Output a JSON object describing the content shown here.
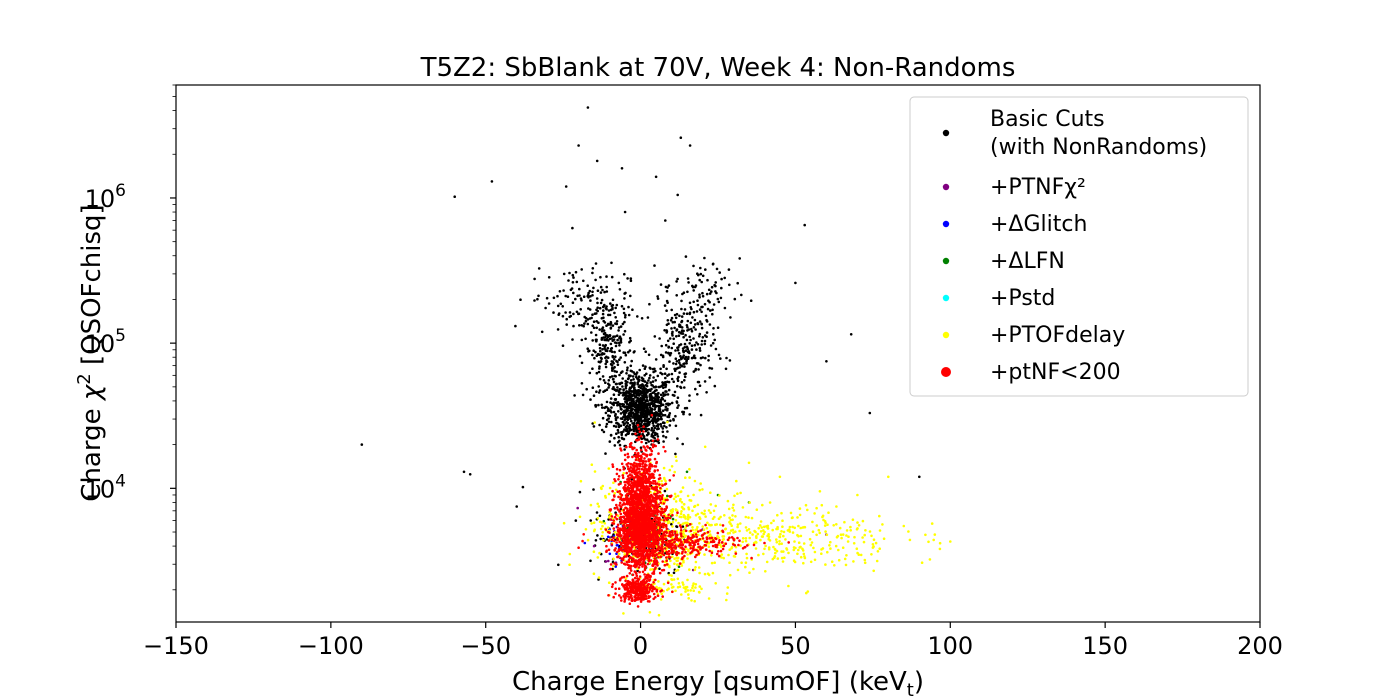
{
  "chart_data": {
    "type": "scatter",
    "title": "T5Z2: SbBlank at 70V, Week 4: Non-Randoms",
    "xlabel": {
      "main": "Charge Energy [qsumOF] (keV",
      "sub": "t",
      "tail": ")"
    },
    "ylabel": {
      "main": "Charge ",
      "greek": "χ",
      "sup": "2",
      "tail": " [QSOFchisq]"
    },
    "xlim": [
      -150,
      200
    ],
    "ylim": [
      1200,
      6000000
    ],
    "yscale": "log",
    "grid": false,
    "legend_position": "top-right",
    "xticks": [
      {
        "value": -150,
        "label": "−150"
      },
      {
        "value": -100,
        "label": "−100"
      },
      {
        "value": -50,
        "label": "−50"
      },
      {
        "value": 0,
        "label": "0"
      },
      {
        "value": 50,
        "label": "50"
      },
      {
        "value": 100,
        "label": "100"
      },
      {
        "value": 150,
        "label": "150"
      },
      {
        "value": 200,
        "label": "200"
      }
    ],
    "yticks": [
      {
        "value": 10000,
        "base": "10",
        "exp": "4"
      },
      {
        "value": 100000,
        "base": "10",
        "exp": "5"
      },
      {
        "value": 1000000,
        "base": "10",
        "exp": "6"
      }
    ],
    "series": [
      {
        "name": "Basic Cuts\n(with NonRandoms)",
        "color": "#000000",
        "clusters": [
          {
            "x": 0,
            "sx": 5,
            "y": 35000,
            "sy": 0.12,
            "n": 900
          },
          {
            "x": -10,
            "sx": 4,
            "y": 90000,
            "sy": 0.18,
            "n": 260
          },
          {
            "x": 14,
            "sx": 5,
            "y": 90000,
            "sy": 0.18,
            "n": 260
          },
          {
            "x": -20,
            "sx": 8,
            "y": 200000,
            "sy": 0.12,
            "n": 120
          },
          {
            "x": 20,
            "sx": 6,
            "y": 220000,
            "sy": 0.12,
            "n": 80
          },
          {
            "x": 0,
            "sx": 8,
            "y": 5000,
            "sy": 0.15,
            "n": 150
          }
        ],
        "points": [
          [
            -17,
            4200000
          ],
          [
            -20,
            2300000
          ],
          [
            -14,
            1800000
          ],
          [
            13,
            2600000
          ],
          [
            16,
            2300000
          ],
          [
            -24,
            1200000
          ],
          [
            -6,
            1600000
          ],
          [
            5,
            1400000
          ],
          [
            -48,
            1300000
          ],
          [
            -60,
            1020000
          ],
          [
            12,
            1050000
          ],
          [
            -5,
            800000
          ],
          [
            8,
            700000
          ],
          [
            -22,
            620000
          ],
          [
            53,
            650000
          ],
          [
            50,
            260000
          ],
          [
            68,
            115000
          ],
          [
            60,
            75000
          ],
          [
            74,
            33000
          ],
          [
            -90,
            20000
          ],
          [
            -57,
            13000
          ],
          [
            -55,
            12500
          ],
          [
            -38,
            10200
          ],
          [
            -40,
            7500
          ],
          [
            90,
            12000
          ]
        ]
      },
      {
        "name": "+PTNFχ²",
        "color": "#800080",
        "clusters": [
          {
            "x": 0,
            "sx": 6,
            "y": 4500,
            "sy": 0.1,
            "n": 60
          }
        ],
        "points": [
          [
            -15,
            4000
          ],
          [
            -5,
            6000
          ],
          [
            20,
            5200
          ],
          [
            60,
            4800
          ]
        ]
      },
      {
        "name": "+ΔGlitch",
        "color": "#0000ff",
        "clusters": [
          {
            "x": -3,
            "sx": 5,
            "y": 4300,
            "sy": 0.08,
            "n": 40
          }
        ],
        "points": [
          [
            -18,
            4200
          ],
          [
            -10,
            5200
          ],
          [
            5,
            4500
          ]
        ]
      },
      {
        "name": "+ΔLFN",
        "color": "#008000",
        "clusters": [
          {
            "x": 2,
            "sx": 6,
            "y": 5200,
            "sy": 0.15,
            "n": 60
          }
        ],
        "points": [
          [
            15,
            13000
          ],
          [
            25,
            9000
          ],
          [
            35,
            8000
          ]
        ]
      },
      {
        "name": "+Pstd",
        "color": "#00ffff",
        "clusters": [
          {
            "x": 1,
            "sx": 3,
            "y": 4200,
            "sy": 0.05,
            "n": 15
          }
        ],
        "points": [
          [
            10,
            4400
          ]
        ]
      },
      {
        "name": "+PTOFdelay",
        "color": "#ffff00",
        "clusters": [
          {
            "x": 5,
            "sx": 10,
            "y": 5500,
            "sy": 0.2,
            "n": 520
          },
          {
            "x": 40,
            "sx": 22,
            "y": 4500,
            "sy": 0.12,
            "n": 420
          },
          {
            "x": 10,
            "sx": 8,
            "y": 2000,
            "sy": 0.04,
            "n": 60
          }
        ],
        "points": [
          [
            70,
            9000
          ],
          [
            80,
            12000
          ],
          [
            85,
            5500
          ],
          [
            95,
            4800
          ],
          [
            100,
            4300
          ],
          [
            35,
            15000
          ],
          [
            45,
            12000
          ]
        ]
      },
      {
        "name": "+ptNF<200",
        "color": "#ff0000",
        "clusters": [
          {
            "x": 0,
            "sx": 4,
            "y": 5500,
            "sy": 0.15,
            "n": 1500
          },
          {
            "x": 0,
            "sx": 3,
            "y": 11000,
            "sy": 0.14,
            "n": 450
          },
          {
            "x": 12,
            "sx": 10,
            "y": 4200,
            "sy": 0.05,
            "n": 320
          },
          {
            "x": -1,
            "sx": 3,
            "y": 2000,
            "sy": 0.04,
            "n": 280
          }
        ],
        "points": [
          [
            -2,
            19000
          ],
          [
            -5,
            17000
          ],
          [
            8,
            18000
          ],
          [
            40,
            4200
          ],
          [
            30,
            4500
          ],
          [
            -20,
            3900
          ]
        ]
      }
    ]
  }
}
